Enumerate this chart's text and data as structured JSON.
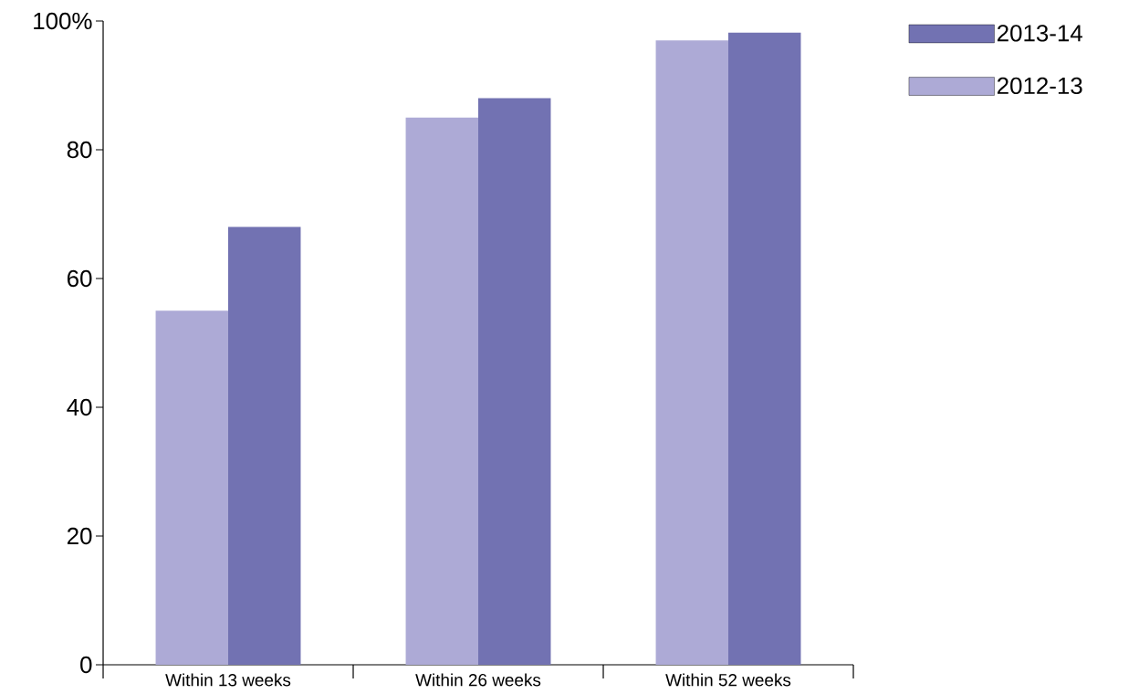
{
  "chart_data": {
    "type": "bar",
    "categories": [
      "Within 13 weeks",
      "Within 26 weeks",
      "Within 52 weeks"
    ],
    "series": [
      {
        "name": "2012-13",
        "color": "#adaad6",
        "values": [
          55,
          85,
          97
        ]
      },
      {
        "name": "2013-14",
        "color": "#7272b2",
        "values": [
          68,
          88,
          98.2
        ]
      }
    ],
    "ylim": [
      0,
      100
    ],
    "yticks": [
      0,
      20,
      40,
      60,
      80,
      {
        "value": 100,
        "label": "100%"
      }
    ],
    "grid": false,
    "legend": "top right"
  }
}
